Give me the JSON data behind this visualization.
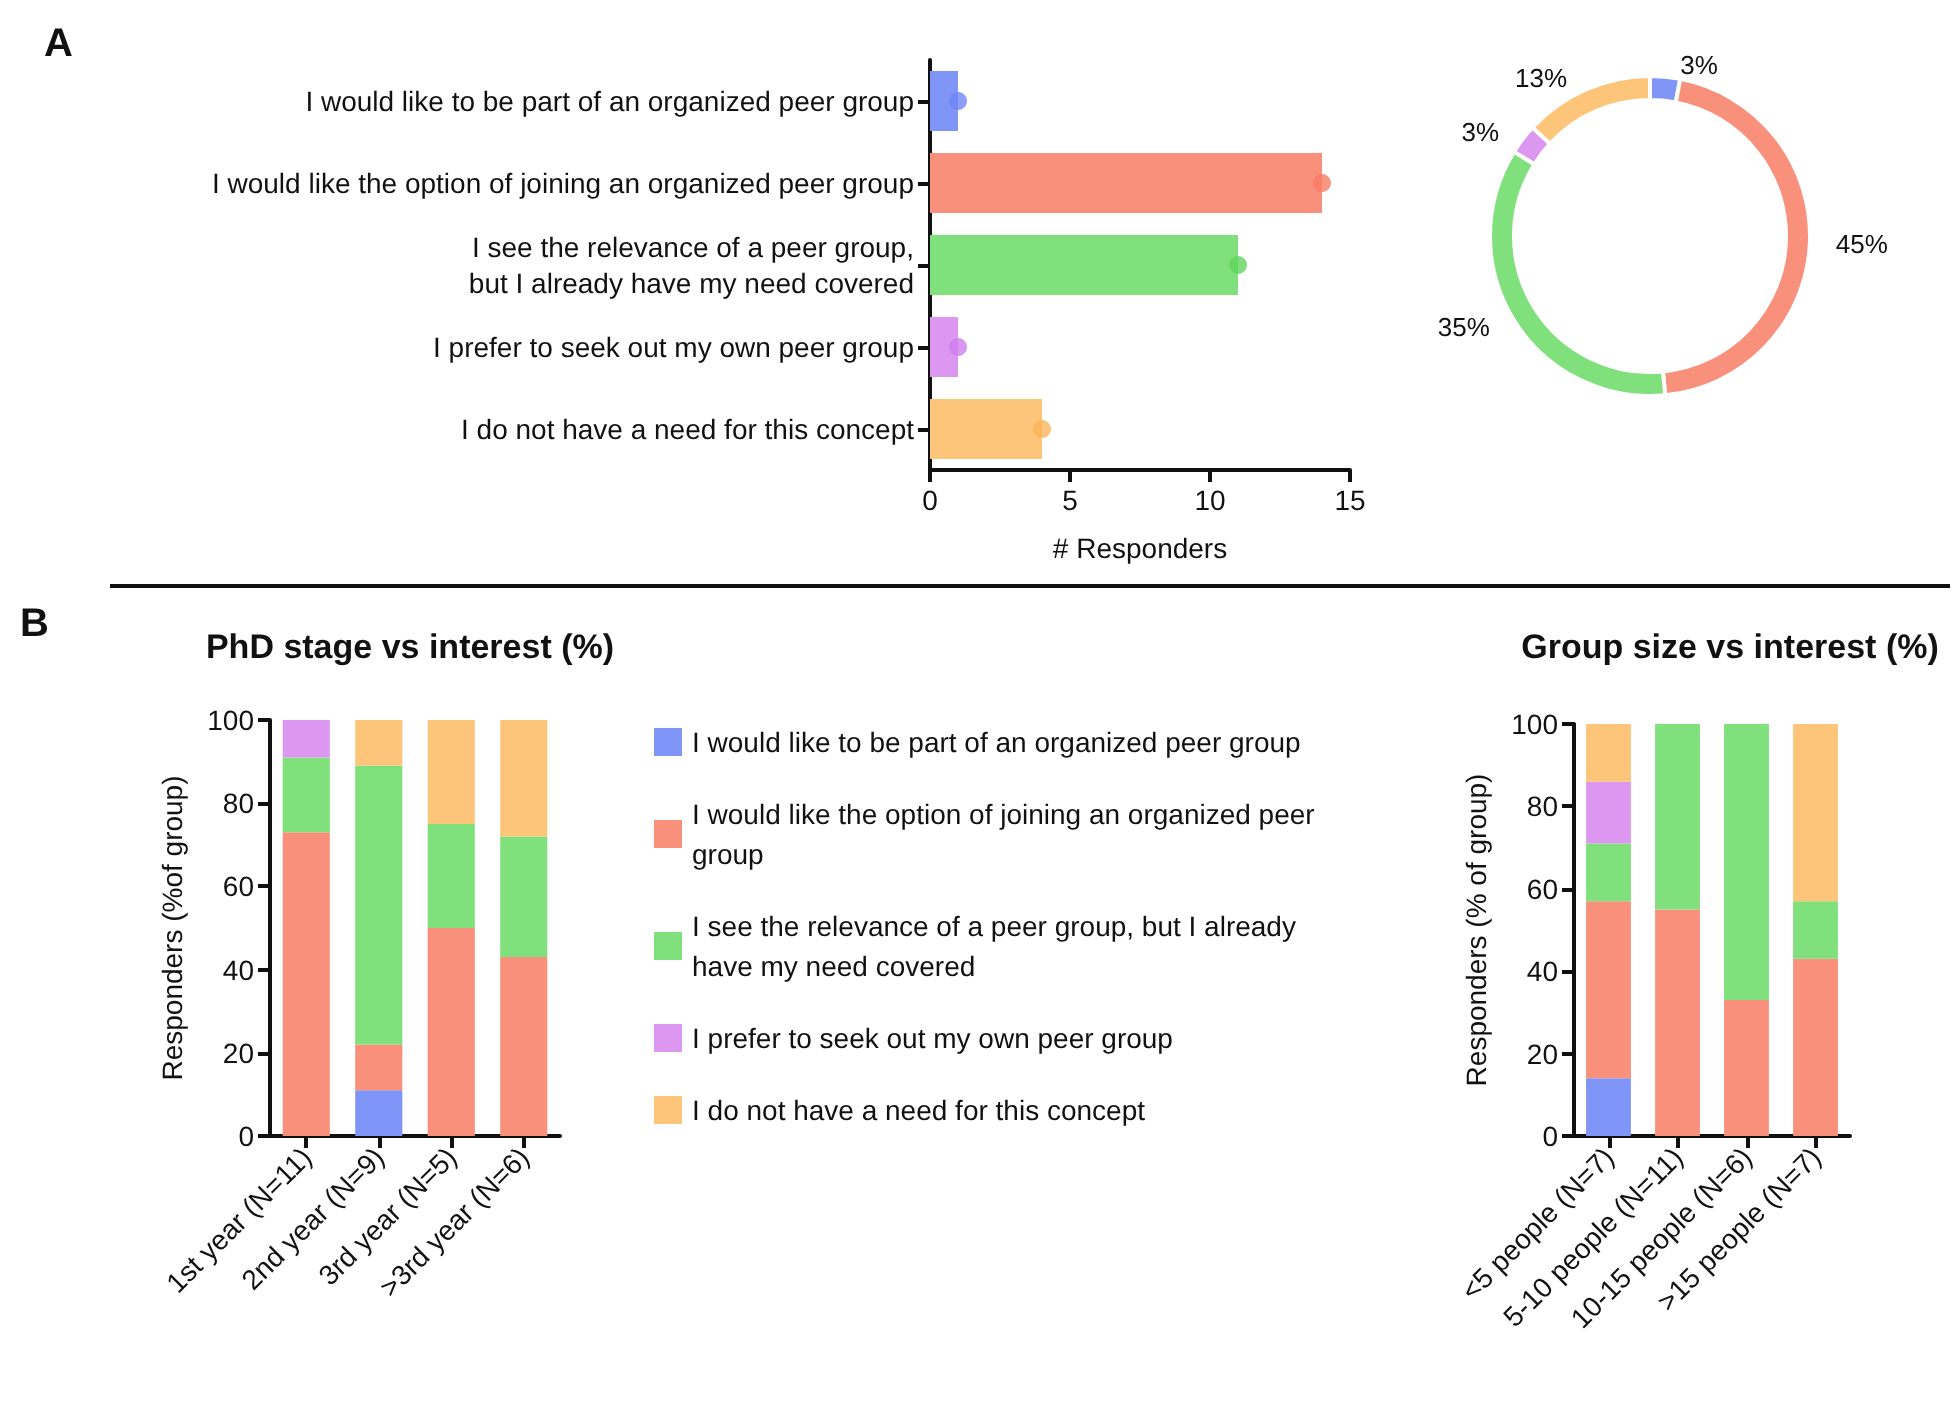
{
  "chart_data": [
    {
      "type": "bar",
      "orientation": "horizontal",
      "xlabel": "# Responders",
      "annotations": [
        "A"
      ],
      "categories": [
        "I would like to be part of an organized peer group",
        "I would like the option of joining an organized peer group",
        "I see the relevance of a peer group,\nbut I already have my need covered",
        "I prefer to seek out my own peer group",
        "I do not have a need for this concept"
      ],
      "series": [
        {
          "type": "bar",
          "colors": [
            "#7f95f7",
            "#f9907c",
            "#80e07c",
            "#dc97f0",
            "#fdc57a"
          ],
          "values": [
            1,
            14,
            11,
            1,
            4
          ]
        },
        {
          "type": "scatter",
          "marker": "circle",
          "colors": [
            "#6f86f5",
            "#f77a64",
            "#62d65e",
            "#cf7ded",
            "#fbb45a"
          ],
          "values": [
            1,
            14,
            11,
            1,
            4
          ]
        }
      ],
      "xlim": [
        0,
        15
      ],
      "xticks": [
        0,
        5,
        10,
        15
      ],
      "grid": false,
      "legend": false
    },
    {
      "type": "donut",
      "categories": [
        null,
        null,
        null,
        null,
        null
      ],
      "values": [
        3,
        45,
        35,
        3,
        13
      ],
      "value_labels": [
        "3%",
        "45%",
        "35%",
        "3%",
        "13%"
      ],
      "colors": [
        "#7f95f7",
        "#f9907c",
        "#80e07c",
        "#dc97f0",
        "#fdc57a"
      ],
      "legend": false
    },
    {
      "type": "bar",
      "stacked": true,
      "title": "PhD stage vs interest (%)",
      "ylabel": "Responders (%of group)",
      "annotations": [
        "B"
      ],
      "categories": [
        "1st year (N=11)",
        "2nd year (N=9)",
        "3rd year (N=5)",
        ">3rd year (N=6)"
      ],
      "series": [
        {
          "name": "I would like to be part of an organized peer group",
          "color": "#7f95f7",
          "values": [
            0,
            11,
            0,
            0
          ]
        },
        {
          "name": "I would like the option of joining an organized peer group",
          "color": "#f9907c",
          "values": [
            73,
            11,
            50,
            43
          ]
        },
        {
          "name": "I see the relevance of a peer group, but I already have my need covered",
          "color": "#80e07c",
          "values": [
            18,
            67,
            25,
            29
          ]
        },
        {
          "name": "I prefer to seek out my own peer group",
          "color": "#dc97f0",
          "values": [
            9,
            0,
            0,
            0
          ]
        },
        {
          "name": "I do not have a need for this concept",
          "color": "#fdc57a",
          "values": [
            0,
            11,
            25,
            28
          ]
        }
      ],
      "ylim": [
        0,
        100
      ],
      "yticks": [
        0,
        20,
        40,
        60,
        80,
        100
      ],
      "grid": false,
      "legend": "right"
    },
    {
      "type": "bar",
      "stacked": true,
      "title": "Group size vs interest (%)",
      "ylabel": "Responders (% of group)",
      "categories": [
        "<5 people (N=7)",
        "5-10 people (N=11)",
        "10-15 people (N=6)",
        ">15 people (N=7)"
      ],
      "series": [
        {
          "color": "#7f95f7",
          "values": [
            14,
            0,
            0,
            0
          ]
        },
        {
          "color": "#f9907c",
          "values": [
            43,
            55,
            33,
            43
          ]
        },
        {
          "color": "#80e07c",
          "values": [
            14,
            45,
            67,
            14
          ]
        },
        {
          "color": "#dc97f0",
          "values": [
            15,
            0,
            0,
            0
          ]
        },
        {
          "color": "#fdc57a",
          "values": [
            14,
            0,
            0,
            43
          ]
        }
      ],
      "ylim": [
        0,
        100
      ],
      "yticks": [
        0,
        20,
        40,
        60,
        80,
        100
      ],
      "grid": false,
      "legend": false
    }
  ]
}
